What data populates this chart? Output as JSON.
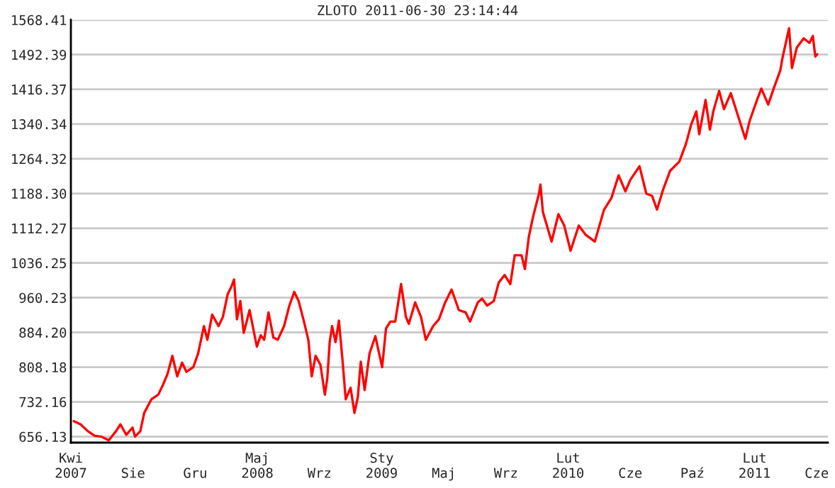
{
  "chart_data": {
    "type": "line",
    "title": "ZLOTO 2011-06-30 23:14:44",
    "x": [
      "2007-04-21",
      "2007-05-05",
      "2007-05-20",
      "2007-06-03",
      "2007-06-17",
      "2007-07-02",
      "2007-07-17",
      "2007-07-26",
      "2007-08-07",
      "2007-08-20",
      "2007-08-25",
      "2007-09-05",
      "2007-09-13",
      "2007-09-28",
      "2007-10-12",
      "2007-10-21",
      "2007-10-31",
      "2007-11-10",
      "2007-11-20",
      "2007-11-30",
      "2007-12-09",
      "2007-12-23",
      "2008-01-02",
      "2008-01-14",
      "2008-01-21",
      "2008-01-31",
      "2008-02-13",
      "2008-02-22",
      "2008-03-03",
      "2008-03-10",
      "2008-03-16",
      "2008-03-22",
      "2008-03-29",
      "2008-04-05",
      "2008-04-17",
      "2008-05-02",
      "2008-05-10",
      "2008-05-17",
      "2008-05-26",
      "2008-06-05",
      "2008-06-14",
      "2008-06-27",
      "2008-07-08",
      "2008-07-18",
      "2008-07-27",
      "2008-08-07",
      "2008-08-16",
      "2008-08-23",
      "2008-08-31",
      "2008-09-10",
      "2008-09-19",
      "2008-09-24",
      "2008-09-29",
      "2008-10-04",
      "2008-10-11",
      "2008-10-18",
      "2008-10-25",
      "2008-11-01",
      "2008-11-11",
      "2008-11-19",
      "2008-11-26",
      "2008-12-02",
      "2008-12-10",
      "2008-12-20",
      "2009-01-01",
      "2009-01-15",
      "2009-01-23",
      "2009-02-01",
      "2009-02-11",
      "2009-02-23",
      "2009-03-05",
      "2009-03-11",
      "2009-03-24",
      "2009-04-05",
      "2009-04-15",
      "2009-04-30",
      "2009-05-12",
      "2009-05-24",
      "2009-06-07",
      "2009-06-22",
      "2009-07-06",
      "2009-07-15",
      "2009-07-31",
      "2009-08-09",
      "2009-08-19",
      "2009-09-02",
      "2009-09-12",
      "2009-09-24",
      "2009-10-06",
      "2009-10-15",
      "2009-10-29",
      "2009-11-05",
      "2009-11-13",
      "2009-11-22",
      "2009-12-04",
      "2009-12-07",
      "2009-12-12",
      "2009-12-23",
      "2009-12-30",
      "2010-01-13",
      "2010-01-25",
      "2010-02-07",
      "2010-02-24",
      "2010-03-10",
      "2010-03-29",
      "2010-04-17",
      "2010-05-02",
      "2010-05-17",
      "2010-05-31",
      "2010-06-10",
      "2010-06-29",
      "2010-07-13",
      "2010-07-25",
      "2010-08-04",
      "2010-08-17",
      "2010-08-31",
      "2010-09-19",
      "2010-10-03",
      "2010-10-13",
      "2010-10-24",
      "2010-10-30",
      "2010-11-12",
      "2010-11-21",
      "2010-11-28",
      "2010-12-10",
      "2010-12-20",
      "2011-01-03",
      "2011-01-18",
      "2011-02-02",
      "2011-02-11",
      "2011-02-26",
      "2011-03-07",
      "2011-03-21",
      "2011-04-03",
      "2011-04-15",
      "2011-04-20",
      "2011-05-03",
      "2011-05-09",
      "2011-05-19",
      "2011-06-02",
      "2011-06-14",
      "2011-06-21",
      "2011-06-26",
      "2011-06-30"
    ],
    "series": [
      {
        "color": "#ff0000",
        "values": [
          690,
          683,
          668,
          658,
          656,
          648,
          668,
          683,
          660,
          676,
          656,
          668,
          708,
          738,
          748,
          768,
          793,
          833,
          788,
          818,
          798,
          808,
          838,
          898,
          868,
          923,
          898,
          918,
          968,
          983,
          1000,
          913,
          953,
          883,
          933,
          853,
          878,
          868,
          928,
          873,
          868,
          898,
          943,
          973,
          953,
          908,
          868,
          788,
          833,
          813,
          748,
          783,
          863,
          898,
          863,
          910,
          828,
          738,
          763,
          708,
          743,
          820,
          758,
          838,
          876,
          808,
          893,
          908,
          908,
          990,
          918,
          903,
          950,
          918,
          868,
          898,
          913,
          948,
          978,
          933,
          928,
          908,
          950,
          958,
          943,
          953,
          993,
          1010,
          990,
          1053,
          1053,
          1023,
          1093,
          1138,
          1188,
          1208,
          1148,
          1108,
          1083,
          1143,
          1118,
          1063,
          1118,
          1098,
          1083,
          1153,
          1178,
          1228,
          1193,
          1218,
          1248,
          1188,
          1183,
          1153,
          1198,
          1238,
          1258,
          1298,
          1338,
          1368,
          1318,
          1393,
          1328,
          1368,
          1413,
          1373,
          1408,
          1358,
          1308,
          1348,
          1393,
          1418,
          1383,
          1423,
          1458,
          1488,
          1550,
          1463,
          1508,
          1528,
          1518,
          1533,
          1488,
          1493
        ]
      }
    ],
    "xlim": [
      "2007-04-15",
      "2011-07-22"
    ],
    "xticks": [
      {
        "value": "2007-04-15",
        "label": "Kwi\n2007"
      },
      {
        "value": "2007-08-21",
        "label": "Sie"
      },
      {
        "value": "2007-12-27",
        "label": "Gru"
      },
      {
        "value": "2008-05-03",
        "label": "Maj\n2008"
      },
      {
        "value": "2008-09-08",
        "label": "Wrz"
      },
      {
        "value": "2009-01-14",
        "label": "Sty\n2009"
      },
      {
        "value": "2009-05-22",
        "label": "Maj"
      },
      {
        "value": "2009-09-27",
        "label": "Wrz"
      },
      {
        "value": "2010-02-02",
        "label": "Lut\n2010"
      },
      {
        "value": "2010-06-10",
        "label": "Cze"
      },
      {
        "value": "2010-10-16",
        "label": "Paź"
      },
      {
        "value": "2011-02-21",
        "label": "Lut\n2011"
      },
      {
        "value": "2011-06-29",
        "label": "Cze"
      }
    ],
    "ylim": [
      643,
      1568.41
    ],
    "yticks": [
      656.13,
      732.16,
      808.18,
      {
        "value": 884.2,
        "label": "884.20"
      },
      960.23,
      1036.25,
      1112.27,
      {
        "value": 1188.3,
        "label": "1188.30"
      },
      1264.32,
      1340.34,
      1416.37,
      1492.39,
      1568.41
    ],
    "grid": "y",
    "legend": false,
    "marker": "none",
    "line_style": "solid"
  }
}
